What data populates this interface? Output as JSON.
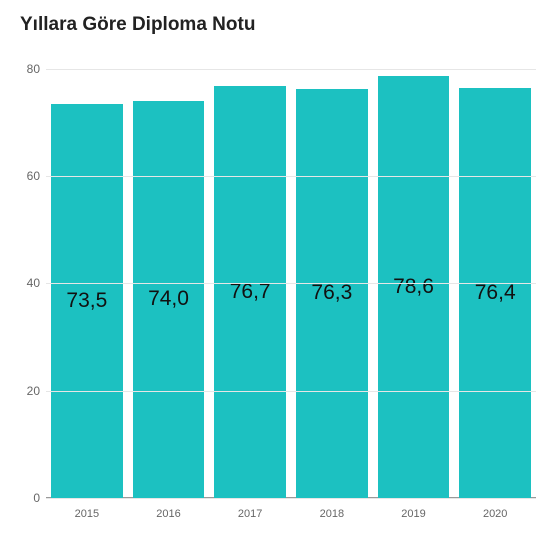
{
  "chart": {
    "type": "bar",
    "title": "Yıllara Göre Diploma Notu",
    "title_fontsize": 19,
    "title_color": "#222222",
    "background_color": "#ffffff",
    "categories": [
      "2015",
      "2016",
      "2017",
      "2018",
      "2019",
      "2020"
    ],
    "values": [
      73.5,
      74.0,
      76.7,
      76.3,
      78.6,
      76.4
    ],
    "value_labels": [
      "73,5",
      "74,0",
      "76,7",
      "76,3",
      "78,6",
      "76,4"
    ],
    "bar_color": "#1cc1c1",
    "bar_width": 0.88,
    "ylim": [
      0,
      82
    ],
    "yticks": [
      0,
      20,
      40,
      60,
      80
    ],
    "grid_color": "#e6e6e6",
    "axis_label_color": "#666666",
    "axis_label_fontsize": 12,
    "x_axis_label_fontsize": 11,
    "value_label_fontsize": 21,
    "value_label_color": "#111111"
  }
}
